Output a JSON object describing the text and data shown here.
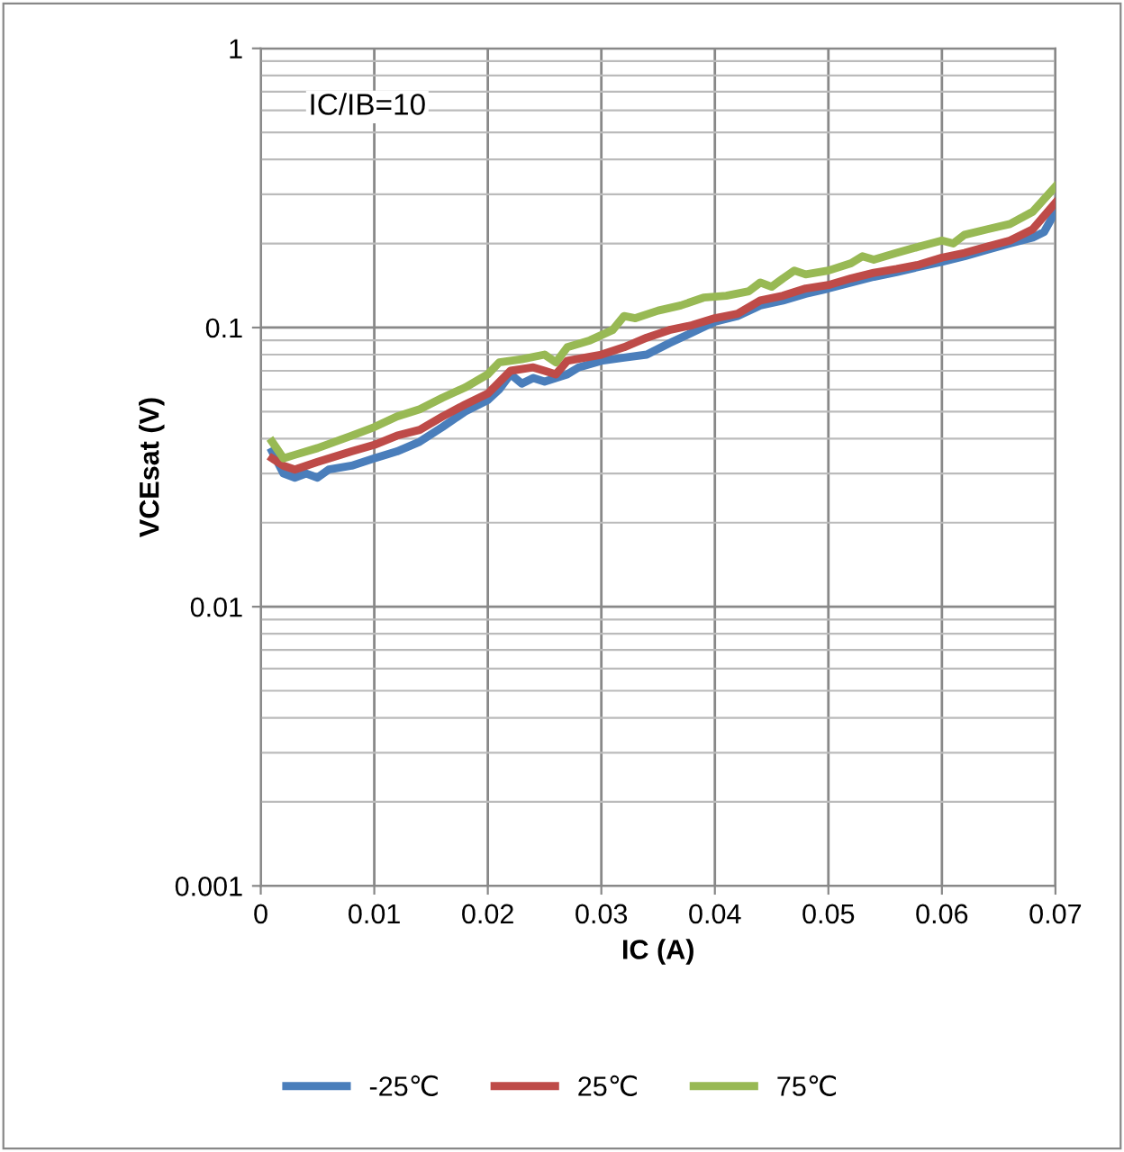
{
  "chart_data": {
    "type": "line",
    "xlabel": "IC (A)",
    "ylabel": "VCEsat (V)",
    "log": "y",
    "grid": true,
    "legend": "bottom",
    "marker": "none",
    "line_style": "solid",
    "xlim": [
      0,
      0.07
    ],
    "xticks": [
      0,
      0.01,
      0.02,
      0.03,
      0.04,
      0.05,
      0.06,
      0.07
    ],
    "ylim": [
      0.001,
      1
    ],
    "yticks": [
      0.001,
      0.01,
      0.1,
      1
    ],
    "annotations": [
      "IC/IB=10"
    ],
    "series": [
      {
        "name": "-25℃",
        "color": "#4a7ebb",
        "x": [
          0.001,
          0.002,
          0.003,
          0.004,
          0.005,
          0.006,
          0.008,
          0.01,
          0.012,
          0.014,
          0.016,
          0.018,
          0.02,
          0.021,
          0.022,
          0.023,
          0.024,
          0.025,
          0.027,
          0.028,
          0.03,
          0.032,
          0.034,
          0.036,
          0.038,
          0.04,
          0.042,
          0.044,
          0.046,
          0.048,
          0.05,
          0.052,
          0.054,
          0.056,
          0.058,
          0.06,
          0.062,
          0.064,
          0.066,
          0.068,
          0.069,
          0.07
        ],
        "values": [
          0.036,
          0.03,
          0.029,
          0.03,
          0.029,
          0.031,
          0.032,
          0.034,
          0.036,
          0.039,
          0.044,
          0.05,
          0.055,
          0.06,
          0.068,
          0.063,
          0.066,
          0.064,
          0.068,
          0.072,
          0.076,
          0.078,
          0.08,
          0.088,
          0.096,
          0.105,
          0.11,
          0.12,
          0.125,
          0.132,
          0.138,
          0.145,
          0.152,
          0.158,
          0.165,
          0.172,
          0.18,
          0.19,
          0.2,
          0.21,
          0.22,
          0.26
        ]
      },
      {
        "name": "25℃",
        "color": "#be4b48",
        "x": [
          0.001,
          0.002,
          0.003,
          0.005,
          0.008,
          0.01,
          0.012,
          0.014,
          0.016,
          0.018,
          0.02,
          0.022,
          0.024,
          0.025,
          0.026,
          0.027,
          0.03,
          0.032,
          0.034,
          0.036,
          0.038,
          0.04,
          0.042,
          0.044,
          0.046,
          0.048,
          0.05,
          0.052,
          0.054,
          0.056,
          0.058,
          0.06,
          0.062,
          0.064,
          0.066,
          0.068,
          0.07
        ],
        "values": [
          0.034,
          0.032,
          0.031,
          0.033,
          0.036,
          0.038,
          0.041,
          0.043,
          0.048,
          0.053,
          0.058,
          0.07,
          0.072,
          0.07,
          0.068,
          0.076,
          0.08,
          0.085,
          0.092,
          0.098,
          0.102,
          0.108,
          0.112,
          0.125,
          0.13,
          0.138,
          0.142,
          0.15,
          0.157,
          0.162,
          0.168,
          0.178,
          0.185,
          0.195,
          0.205,
          0.225,
          0.28
        ]
      },
      {
        "name": "75℃",
        "color": "#98b954",
        "x": [
          0.001,
          0.002,
          0.003,
          0.005,
          0.008,
          0.01,
          0.012,
          0.014,
          0.016,
          0.018,
          0.02,
          0.021,
          0.023,
          0.025,
          0.026,
          0.027,
          0.029,
          0.031,
          0.032,
          0.033,
          0.035,
          0.037,
          0.039,
          0.041,
          0.043,
          0.044,
          0.045,
          0.046,
          0.047,
          0.048,
          0.05,
          0.052,
          0.053,
          0.054,
          0.056,
          0.058,
          0.06,
          0.061,
          0.062,
          0.064,
          0.066,
          0.068,
          0.07
        ],
        "values": [
          0.039,
          0.034,
          0.035,
          0.037,
          0.041,
          0.044,
          0.048,
          0.051,
          0.056,
          0.061,
          0.068,
          0.075,
          0.077,
          0.08,
          0.075,
          0.085,
          0.09,
          0.098,
          0.11,
          0.108,
          0.115,
          0.12,
          0.128,
          0.13,
          0.135,
          0.145,
          0.14,
          0.15,
          0.16,
          0.155,
          0.16,
          0.17,
          0.18,
          0.175,
          0.185,
          0.195,
          0.205,
          0.2,
          0.215,
          0.225,
          0.235,
          0.26,
          0.32
        ]
      }
    ]
  }
}
